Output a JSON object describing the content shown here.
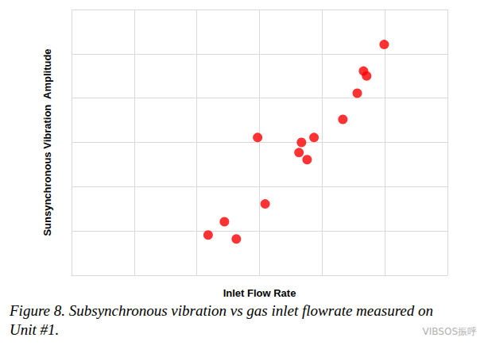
{
  "chart_data": {
    "type": "scatter",
    "title": "Figure 8. Subsynchronous vibration vs gas inlet flowrate measured on Unit #1.",
    "x_label": "Inlet Flow Rate",
    "y_label": "Sunsynchronous Vibration  Amplitude",
    "annotations": [
      "VIBSOS振呼"
    ],
    "x": [
      2.18,
      2.44,
      2.63,
      2.97,
      3.09,
      3.63,
      3.67,
      3.76,
      3.87,
      4.33,
      4.56,
      4.66,
      4.71,
      4.99
    ],
    "values": [
      0.91,
      1.21,
      0.82,
      3.11,
      1.61,
      2.77,
      3.0,
      2.61,
      3.11,
      3.52,
      4.11,
      4.61,
      4.5,
      5.21
    ],
    "color": "#ff0000",
    "marker": "circle",
    "xlim": [
      0,
      6
    ],
    "xticks": [
      0,
      1,
      2,
      3,
      4,
      5,
      6
    ],
    "ylim": [
      0,
      6
    ],
    "yticks": [
      0,
      1,
      2,
      3,
      4,
      5,
      6
    ],
    "grid": true,
    "tick_labels": false
  }
}
